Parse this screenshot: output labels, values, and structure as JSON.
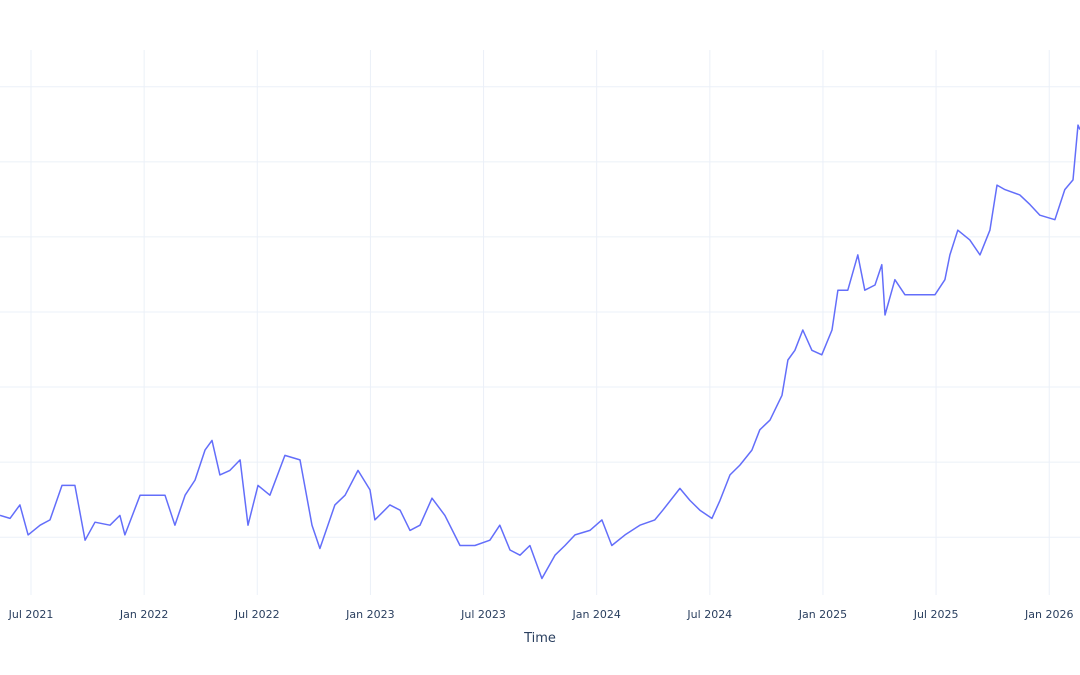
{
  "chart_data": {
    "type": "line",
    "title": "",
    "xlabel": "Time",
    "ylabel": "",
    "x_units": "decimal year",
    "y_units": "unlabeled (gridline steps)",
    "xlim": [
      2021.363,
      2026.136
    ],
    "ylim": [
      -0.77,
      6.49
    ],
    "grid": true,
    "legend": "none",
    "x_ticks": [
      {
        "value": 2021.5,
        "label": "Jul 2021"
      },
      {
        "value": 2022.0,
        "label": "Jan 2022"
      },
      {
        "value": 2022.5,
        "label": "Jul 2022"
      },
      {
        "value": 2023.0,
        "label": "Jan 2023"
      },
      {
        "value": 2023.5,
        "label": "Jul 2023"
      },
      {
        "value": 2024.0,
        "label": "Jan 2024"
      },
      {
        "value": 2024.5,
        "label": "Jul 2024"
      },
      {
        "value": 2025.0,
        "label": "Jan 2025"
      },
      {
        "value": 2025.5,
        "label": "Jul 2025"
      },
      {
        "value": 2026.0,
        "label": "Jan 2026"
      }
    ],
    "y_gridlines": [
      0,
      1,
      2,
      3,
      4,
      5,
      6
    ],
    "series": [
      {
        "name": "series",
        "color": "#636efa",
        "x": [
          2021.363,
          2021.407,
          2021.451,
          2021.487,
          2021.54,
          2021.584,
          2021.637,
          2021.694,
          2021.739,
          2021.783,
          2021.849,
          2021.893,
          2021.915,
          2021.982,
          2022.048,
          2022.092,
          2022.136,
          2022.181,
          2022.225,
          2022.269,
          2022.3,
          2022.335,
          2022.379,
          2022.424,
          2022.459,
          2022.503,
          2022.556,
          2022.622,
          2022.689,
          2022.742,
          2022.777,
          2022.843,
          2022.888,
          2022.945,
          2022.998,
          2023.02,
          2023.086,
          2023.131,
          2023.175,
          2023.219,
          2023.272,
          2023.329,
          2023.396,
          2023.462,
          2023.528,
          2023.572,
          2023.617,
          2023.661,
          2023.705,
          2023.758,
          2023.816,
          2023.86,
          2023.904,
          2023.97,
          2024.023,
          2024.067,
          2024.125,
          2024.191,
          2024.257,
          2024.292,
          2024.368,
          2024.412,
          2024.456,
          2024.509,
          2024.545,
          2024.589,
          2024.633,
          2024.686,
          2024.721,
          2024.766,
          2024.819,
          2024.845,
          2024.876,
          2024.911,
          2024.951,
          2024.995,
          2025.04,
          2025.066,
          2025.11,
          2025.154,
          2025.185,
          2025.23,
          2025.26,
          2025.274,
          2025.318,
          2025.362,
          2025.428,
          2025.495,
          2025.539,
          2025.561,
          2025.596,
          2025.649,
          2025.694,
          2025.738,
          2025.769,
          2025.804,
          2025.87,
          2025.915,
          2025.959,
          2026.025,
          2026.069,
          2026.105,
          2026.127,
          2026.136
        ],
        "y": [
          0.29,
          0.25,
          0.43,
          0.03,
          0.16,
          0.23,
          0.69,
          0.69,
          -0.04,
          0.2,
          0.16,
          0.29,
          0.03,
          0.56,
          0.56,
          0.56,
          0.16,
          0.56,
          0.76,
          1.16,
          1.29,
          0.83,
          0.89,
          1.03,
          0.16,
          0.69,
          0.56,
          1.09,
          1.03,
          0.16,
          -0.15,
          0.43,
          0.56,
          0.89,
          0.63,
          0.23,
          0.43,
          0.36,
          0.09,
          0.16,
          0.52,
          0.29,
          -0.11,
          -0.11,
          -0.04,
          0.16,
          -0.17,
          -0.24,
          -0.11,
          -0.55,
          -0.24,
          -0.11,
          0.03,
          0.09,
          0.23,
          -0.11,
          0.03,
          0.16,
          0.23,
          0.36,
          0.65,
          0.49,
          0.36,
          0.25,
          0.49,
          0.83,
          0.96,
          1.16,
          1.43,
          1.56,
          1.89,
          2.36,
          2.49,
          2.76,
          2.49,
          2.43,
          2.76,
          3.29,
          3.29,
          3.76,
          3.29,
          3.36,
          3.63,
          2.96,
          3.43,
          3.23,
          3.23,
          3.23,
          3.43,
          3.76,
          4.09,
          3.96,
          3.76,
          4.09,
          4.69,
          4.63,
          4.56,
          4.43,
          4.29,
          4.23,
          4.63,
          4.76,
          5.49,
          5.43
        ]
      }
    ]
  }
}
